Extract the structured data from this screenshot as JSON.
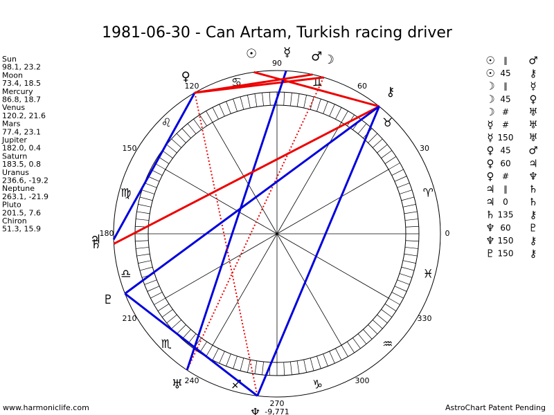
{
  "title": "1981-06-30 - Can Artam, Turkish racing driver",
  "planets": [
    {
      "name": "Sun",
      "glyph": "☉",
      "coords": "98.1, 23.2",
      "longitude": 98.1
    },
    {
      "name": "Moon",
      "glyph": "☽",
      "coords": "73.4, 18.5",
      "longitude": 73.4
    },
    {
      "name": "Mercury",
      "glyph": "☿",
      "coords": "86.8, 18.7",
      "longitude": 86.8
    },
    {
      "name": "Venus",
      "glyph": "♀",
      "coords": "120.2, 21.6",
      "longitude": 120.2
    },
    {
      "name": "Mars",
      "glyph": "♂",
      "coords": "77.4, 23.1",
      "longitude": 77.4
    },
    {
      "name": "Jupiter",
      "glyph": "♃",
      "coords": "182.0, 0.4",
      "longitude": 182.0
    },
    {
      "name": "Saturn",
      "glyph": "♄",
      "coords": "183.5, 0.8",
      "longitude": 183.5
    },
    {
      "name": "Uranus",
      "glyph": "♅",
      "coords": "236.6, -19.2",
      "longitude": 236.6
    },
    {
      "name": "Neptune",
      "glyph": "♆",
      "coords": "263.1, -21.9",
      "longitude": 263.1
    },
    {
      "name": "Pluto",
      "glyph": "♇",
      "coords": "201.5, 7.6",
      "longitude": 201.5
    },
    {
      "name": "Chiron",
      "glyph": "⚷",
      "coords": "51.3, 15.9",
      "longitude": 51.3
    }
  ],
  "signs": [
    "♈",
    "♉",
    "♊",
    "♋",
    "♌",
    "♍",
    "♎",
    "♏",
    "♐",
    "♑",
    "♒",
    "♓"
  ],
  "degree_labels": [
    "0",
    "30",
    "60",
    "90",
    "120",
    "150",
    "180",
    "210",
    "240",
    "270",
    "300",
    "330"
  ],
  "wheel_note": "-9,771",
  "aspects": [
    {
      "p1": "☉",
      "symbol": "∥",
      "p2": "♂"
    },
    {
      "p1": "☉",
      "symbol": "45",
      "p2": "⚷"
    },
    {
      "p1": "☽",
      "symbol": "∥",
      "p2": "☿"
    },
    {
      "p1": "☽",
      "symbol": "45",
      "p2": "♀"
    },
    {
      "p1": "☽",
      "symbol": "#",
      "p2": "♅"
    },
    {
      "p1": "☿",
      "symbol": "#",
      "p2": "♅"
    },
    {
      "p1": "☿",
      "symbol": "150",
      "p2": "♅"
    },
    {
      "p1": "♀",
      "symbol": "45",
      "p2": "♂"
    },
    {
      "p1": "♀",
      "symbol": "60",
      "p2": "♃"
    },
    {
      "p1": "♀",
      "symbol": "#",
      "p2": "♆"
    },
    {
      "p1": "♃",
      "symbol": "∥",
      "p2": "♄"
    },
    {
      "p1": "♃",
      "symbol": "0",
      "p2": "♄"
    },
    {
      "p1": "♄",
      "symbol": "135",
      "p2": "⚷"
    },
    {
      "p1": "♆",
      "symbol": "60",
      "p2": "♇"
    },
    {
      "p1": "♆",
      "symbol": "150",
      "p2": "⚷"
    },
    {
      "p1": "♇",
      "symbol": "150",
      "p2": "⚷"
    }
  ],
  "footer_left": "www.harmoniclife.com",
  "footer_right": "AstroChart Patent Pending"
}
